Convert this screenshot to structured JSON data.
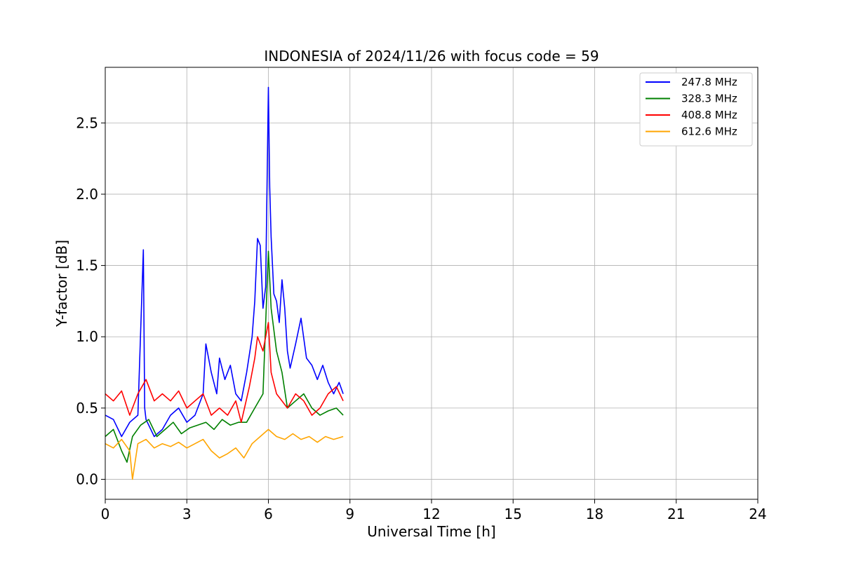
{
  "chart_data": {
    "type": "line",
    "title": "INDONESIA of 2024/11/26 with focus code = 59",
    "xlabel": "Universal Time [h]",
    "ylabel": "Y-factor [dB]",
    "xlim": [
      0,
      24
    ],
    "ylim": [
      -0.14,
      2.89
    ],
    "xticks": [
      0,
      3,
      6,
      9,
      12,
      15,
      18,
      21,
      24
    ],
    "yticks": [
      0.0,
      0.5,
      1.0,
      1.5,
      2.0,
      2.5
    ],
    "ytick_labels": [
      "0.0",
      "0.5",
      "1.0",
      "1.5",
      "2.0",
      "2.5"
    ],
    "grid": true,
    "legend_position": "top-right",
    "series": [
      {
        "name": "247.8 MHz",
        "color": "#0000ff",
        "x": [
          0.0,
          0.3,
          0.6,
          0.9,
          1.2,
          1.4,
          1.45,
          1.5,
          1.8,
          2.1,
          2.4,
          2.7,
          3.0,
          3.3,
          3.6,
          3.7,
          3.9,
          4.1,
          4.2,
          4.4,
          4.6,
          4.8,
          5.0,
          5.2,
          5.4,
          5.5,
          5.6,
          5.7,
          5.8,
          5.9,
          6.0,
          6.05,
          6.1,
          6.2,
          6.3,
          6.4,
          6.5,
          6.6,
          6.7,
          6.8,
          7.0,
          7.2,
          7.4,
          7.6,
          7.8,
          8.0,
          8.2,
          8.4,
          8.6,
          8.75
        ],
        "y": [
          0.45,
          0.42,
          0.3,
          0.4,
          0.45,
          1.61,
          0.5,
          0.42,
          0.3,
          0.35,
          0.45,
          0.5,
          0.4,
          0.45,
          0.6,
          0.95,
          0.75,
          0.6,
          0.85,
          0.7,
          0.8,
          0.6,
          0.55,
          0.75,
          1.0,
          1.25,
          1.69,
          1.64,
          1.2,
          1.35,
          2.75,
          2.05,
          1.7,
          1.3,
          1.25,
          1.1,
          1.4,
          1.2,
          0.9,
          0.78,
          0.95,
          1.13,
          0.85,
          0.8,
          0.7,
          0.8,
          0.68,
          0.6,
          0.68,
          0.6
        ]
      },
      {
        "name": "328.3 MHz",
        "color": "#008000",
        "x": [
          0.0,
          0.3,
          0.6,
          0.8,
          1.0,
          1.3,
          1.6,
          1.9,
          2.2,
          2.5,
          2.8,
          3.1,
          3.4,
          3.7,
          4.0,
          4.3,
          4.6,
          4.9,
          5.2,
          5.5,
          5.8,
          6.0,
          6.1,
          6.3,
          6.5,
          6.7,
          7.0,
          7.3,
          7.6,
          7.9,
          8.2,
          8.5,
          8.75
        ],
        "y": [
          0.3,
          0.35,
          0.2,
          0.12,
          0.3,
          0.38,
          0.42,
          0.3,
          0.35,
          0.4,
          0.32,
          0.36,
          0.38,
          0.4,
          0.35,
          0.42,
          0.38,
          0.4,
          0.4,
          0.5,
          0.6,
          1.6,
          1.2,
          0.9,
          0.75,
          0.5,
          0.55,
          0.6,
          0.5,
          0.45,
          0.48,
          0.5,
          0.45
        ]
      },
      {
        "name": "408.8 MHz",
        "color": "#ff0000",
        "x": [
          0.0,
          0.3,
          0.6,
          0.9,
          1.2,
          1.5,
          1.8,
          2.1,
          2.4,
          2.7,
          3.0,
          3.3,
          3.6,
          3.9,
          4.2,
          4.5,
          4.8,
          5.0,
          5.3,
          5.5,
          5.6,
          5.8,
          6.0,
          6.1,
          6.3,
          6.5,
          6.7,
          7.0,
          7.3,
          7.6,
          7.9,
          8.2,
          8.5,
          8.75
        ],
        "y": [
          0.6,
          0.55,
          0.62,
          0.45,
          0.6,
          0.7,
          0.55,
          0.6,
          0.55,
          0.62,
          0.5,
          0.55,
          0.6,
          0.45,
          0.5,
          0.45,
          0.55,
          0.4,
          0.65,
          0.85,
          1.0,
          0.9,
          1.1,
          0.75,
          0.6,
          0.55,
          0.5,
          0.6,
          0.55,
          0.45,
          0.5,
          0.6,
          0.65,
          0.55
        ]
      },
      {
        "name": "612.6 MHz",
        "color": "#ffa500",
        "x": [
          0.0,
          0.3,
          0.6,
          0.9,
          1.0,
          1.2,
          1.5,
          1.8,
          2.1,
          2.4,
          2.7,
          3.0,
          3.3,
          3.6,
          3.9,
          4.2,
          4.5,
          4.8,
          5.1,
          5.4,
          5.7,
          6.0,
          6.3,
          6.6,
          6.9,
          7.2,
          7.5,
          7.8,
          8.1,
          8.4,
          8.75
        ],
        "y": [
          0.25,
          0.22,
          0.28,
          0.2,
          0.0,
          0.25,
          0.28,
          0.22,
          0.25,
          0.23,
          0.26,
          0.22,
          0.25,
          0.28,
          0.2,
          0.15,
          0.18,
          0.22,
          0.15,
          0.25,
          0.3,
          0.35,
          0.3,
          0.28,
          0.32,
          0.28,
          0.3,
          0.26,
          0.3,
          0.28,
          0.3
        ]
      }
    ]
  }
}
